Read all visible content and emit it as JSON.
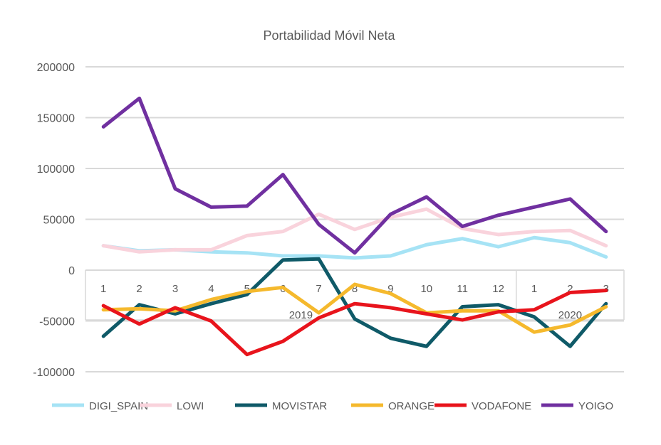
{
  "chart_data": {
    "type": "line",
    "title": "Portabilidad Móvil Neta",
    "xlabel": "",
    "ylabel": "",
    "ylim": [
      -100000,
      200000
    ],
    "yticks": [
      200000,
      150000,
      100000,
      50000,
      0,
      -50000,
      -100000
    ],
    "ytick_labels": [
      "200000",
      "150000",
      "100000",
      "50000",
      "0",
      "-50000",
      "-100000"
    ],
    "grid": true,
    "legend": "bottom",
    "categories": [
      "1",
      "2",
      "3",
      "4",
      "5",
      "6",
      "7",
      "8",
      "9",
      "10",
      "11",
      "12",
      "1",
      "2",
      "3"
    ],
    "category_groups": [
      {
        "label": "2019",
        "count": 12
      },
      {
        "label": "2020",
        "count": 3
      }
    ],
    "series": [
      {
        "name": "DIGI_SPAIN",
        "color": "#a6e3f5",
        "values": [
          24000,
          19000,
          20000,
          18000,
          17000,
          14000,
          14000,
          12000,
          14000,
          25000,
          31000,
          23000,
          32000,
          27000,
          13000
        ]
      },
      {
        "name": "LOWI",
        "color": "#f9d3dc",
        "values": [
          24000,
          18000,
          20000,
          20000,
          34000,
          38000,
          55000,
          40000,
          52000,
          60000,
          41000,
          35000,
          38000,
          39000,
          24000
        ]
      },
      {
        "name": "MOVISTAR",
        "color": "#0f5a68",
        "values": [
          -65000,
          -34000,
          -43000,
          -33000,
          -24000,
          10000,
          11000,
          -48000,
          -67000,
          -75000,
          -36000,
          -34000,
          -46000,
          -75000,
          -33000
        ]
      },
      {
        "name": "ORANGE",
        "color": "#f5b92d",
        "values": [
          -39000,
          -38000,
          -40000,
          -29000,
          -21000,
          -17000,
          -42000,
          -14000,
          -23000,
          -42000,
          -40000,
          -40000,
          -61000,
          -54000,
          -36000
        ]
      },
      {
        "name": "VODAFONE",
        "color": "#e8141c",
        "values": [
          -35000,
          -53000,
          -37000,
          -50000,
          -83000,
          -70000,
          -47000,
          -33000,
          -37000,
          -43000,
          -49000,
          -41000,
          -39000,
          -22000,
          -20000
        ]
      },
      {
        "name": "YOIGO",
        "color": "#7030a0",
        "values": [
          141000,
          169000,
          80000,
          62000,
          63000,
          94000,
          45000,
          17000,
          55000,
          72000,
          43000,
          54000,
          62000,
          70000,
          38000
        ]
      }
    ]
  }
}
